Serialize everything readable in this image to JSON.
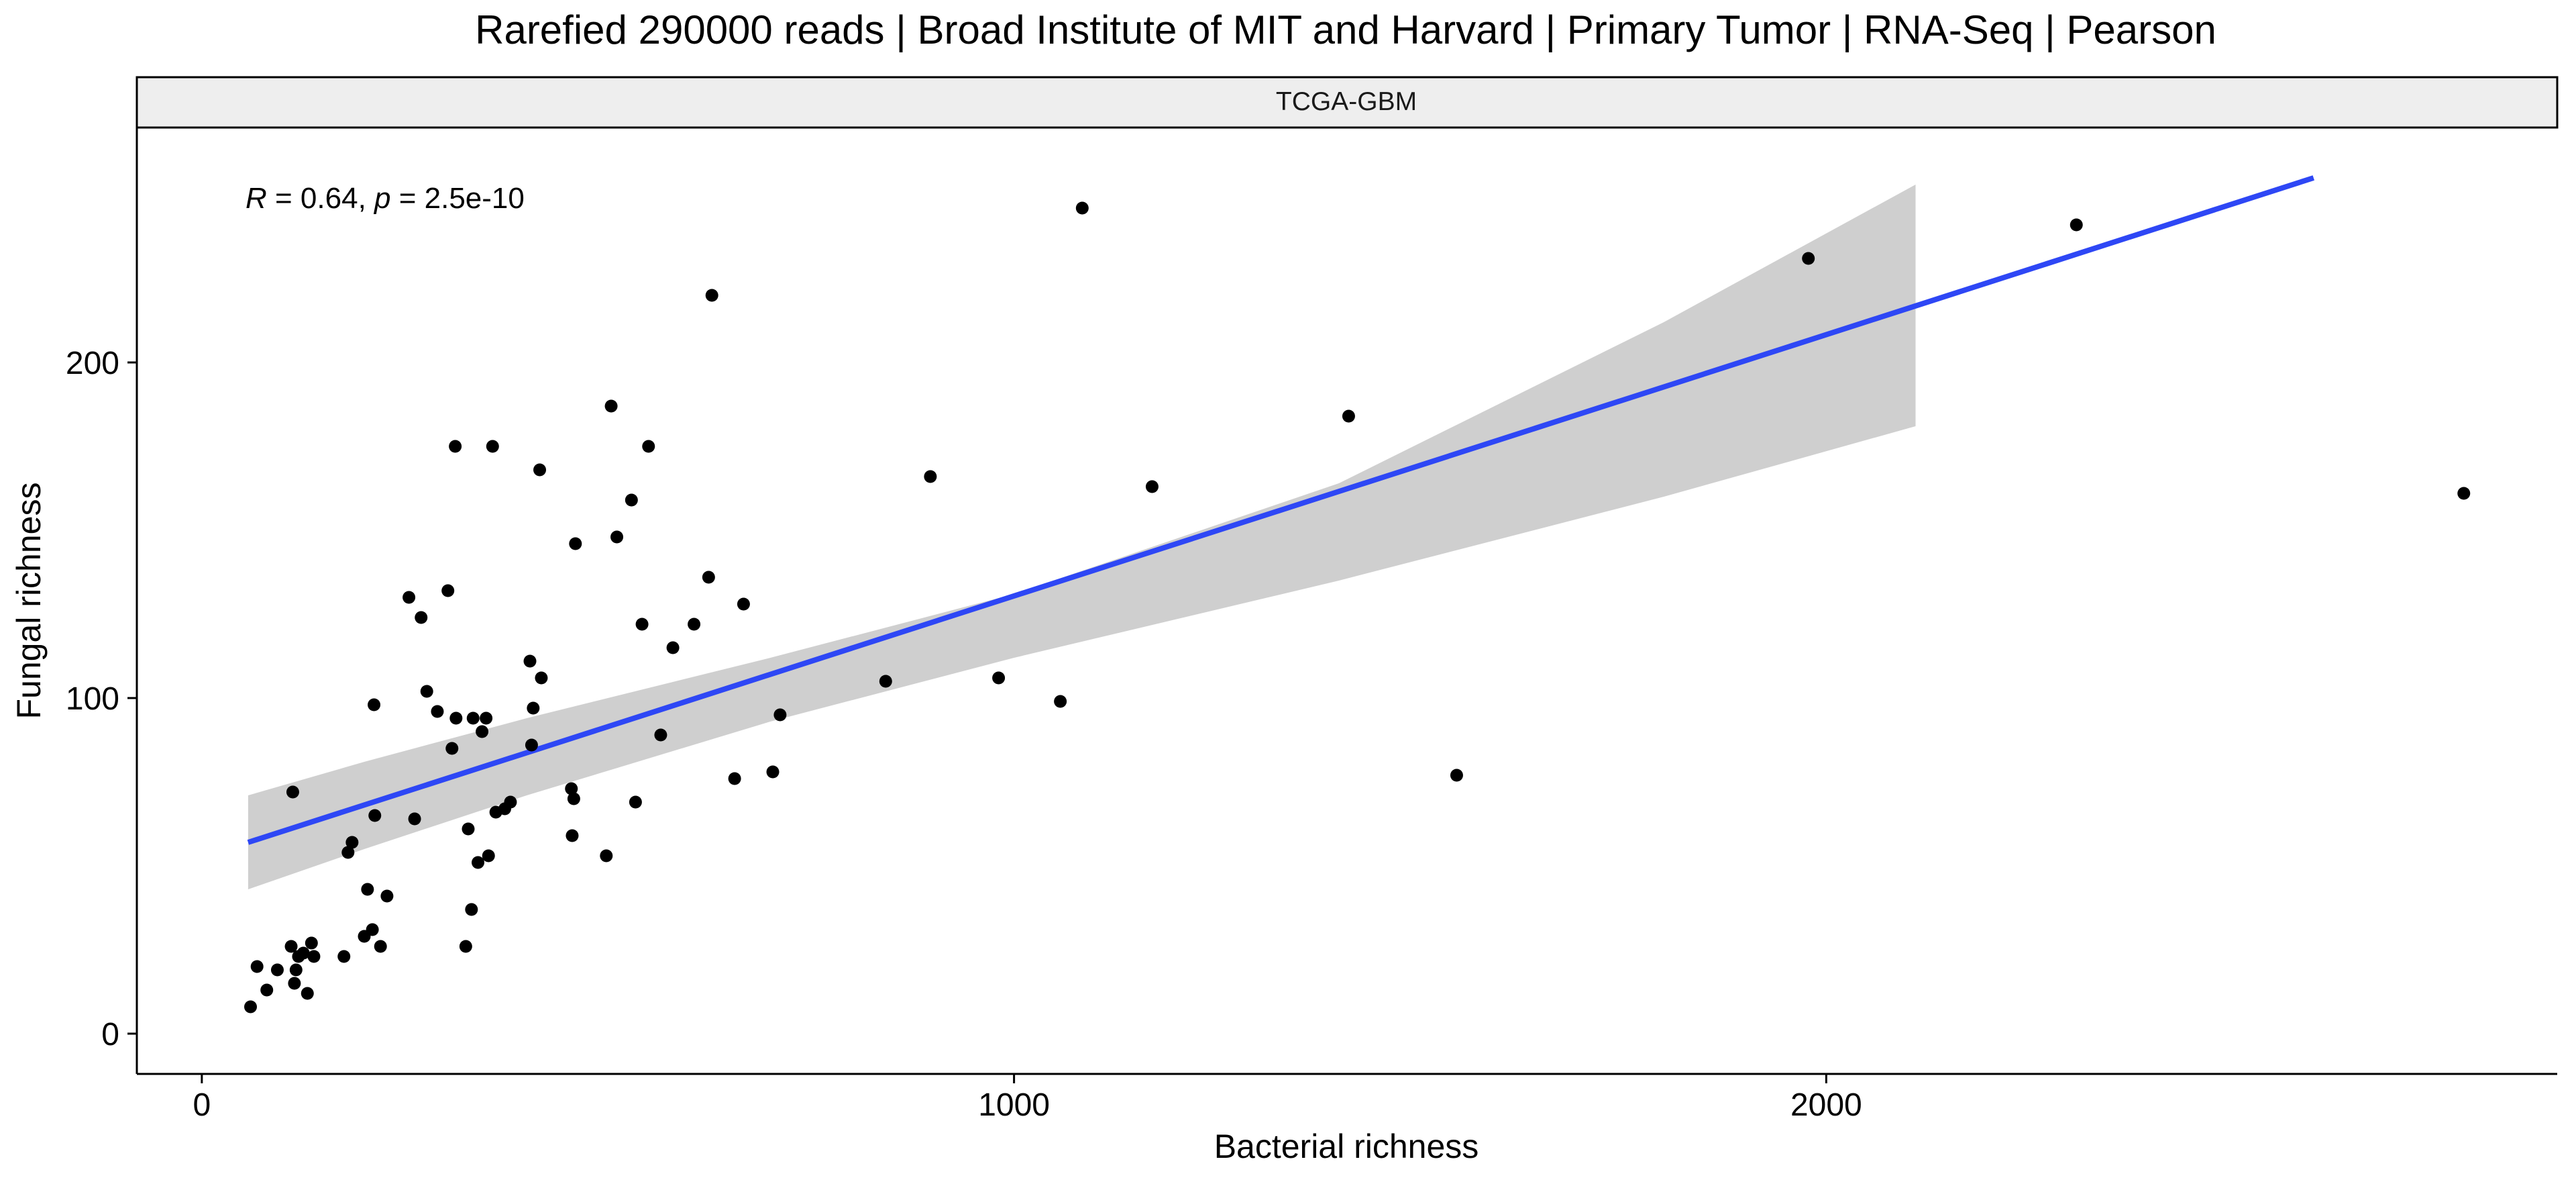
{
  "chart_data": {
    "type": "scatter",
    "title": "Rarefied 290000 reads | Broad Institute of MIT and Harvard | Primary Tumor | RNA-Seq | Pearson",
    "facet_label": "TCGA-GBM",
    "xlabel": "Bacterial richness",
    "ylabel": "Fungal richness",
    "xlim": [
      -80,
      2900
    ],
    "ylim": [
      -12,
      270
    ],
    "x_ticks": [
      0,
      1000,
      2000
    ],
    "y_ticks": [
      0,
      100,
      200
    ],
    "grid": false,
    "annotation": {
      "r_symbol": "R",
      "r_text": " = 0.64, ",
      "p_symbol": "p",
      "p_text": " = 2.5e-10"
    },
    "colors": {
      "points": "#000000",
      "fit_line": "#2E47F5",
      "confidence_band": "#CFCFCF",
      "strip_fill": "#EEEEEE"
    },
    "fit_line": {
      "x": [
        57,
        2600
      ],
      "y": [
        57,
        255
      ]
    },
    "confidence_band": {
      "x": [
        57,
        200,
        400,
        700,
        1000,
        1400,
        1800,
        2110
      ],
      "upper": [
        71,
        81,
        94,
        112,
        131,
        164,
        212,
        253
      ],
      "lower": [
        43,
        55,
        71,
        93,
        112,
        135,
        160,
        181
      ]
    },
    "points": {
      "x": [
        60,
        68,
        80,
        93,
        110,
        112,
        114,
        116,
        119,
        125,
        130,
        135,
        138,
        175,
        180,
        185,
        200,
        204,
        210,
        212,
        213,
        220,
        228,
        255,
        262,
        270,
        277,
        290,
        303,
        308,
        312,
        313,
        325,
        328,
        332,
        334,
        340,
        345,
        350,
        353,
        358,
        362,
        373,
        380,
        404,
        406,
        408,
        416,
        418,
        455,
        456,
        458,
        460,
        498,
        504,
        511,
        529,
        534,
        542,
        550,
        565,
        580,
        606,
        624,
        628,
        656,
        667,
        703,
        712,
        842,
        897,
        981,
        1057,
        1084,
        1170,
        1412,
        1545,
        1978,
        2308,
        2785
      ],
      "y": [
        8,
        20,
        13,
        19,
        26,
        72,
        15,
        19,
        23,
        24,
        12,
        27,
        23,
        23,
        54,
        57,
        29,
        43,
        31,
        98,
        65,
        26,
        41,
        130,
        64,
        124,
        102,
        96,
        132,
        85,
        175,
        94,
        26,
        61,
        37,
        94,
        51,
        90,
        94,
        53,
        175,
        66,
        67,
        69,
        111,
        86,
        97,
        168,
        106,
        73,
        59,
        70,
        146,
        53,
        187,
        148,
        159,
        69,
        122,
        175,
        89,
        115,
        122,
        136,
        220,
        76,
        128,
        78,
        95,
        105,
        166,
        106,
        99,
        246,
        163,
        184,
        77,
        231,
        241,
        161
      ]
    }
  }
}
